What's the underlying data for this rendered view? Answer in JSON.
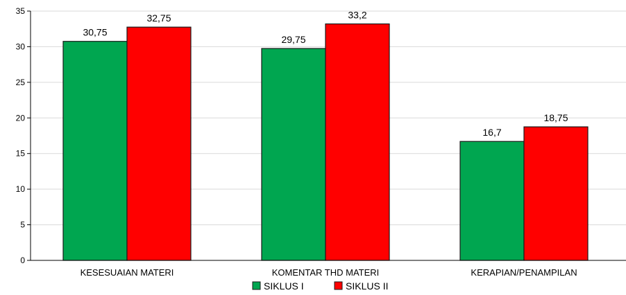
{
  "chart_data": {
    "type": "bar",
    "categories": [
      "KESESUAIAN MATERI",
      "KOMENTAR THD MATERI",
      "KERAPIAN/PENAMPILAN"
    ],
    "series": [
      {
        "name": "SIKLUS I",
        "color": "#00a650",
        "values": [
          30.75,
          29.75,
          16.7
        ],
        "labels": [
          "30,75",
          "29,75",
          "16,7"
        ]
      },
      {
        "name": "SIKLUS II",
        "color": "#ff0000",
        "values": [
          32.75,
          33.2,
          18.75
        ],
        "labels": [
          "32,75",
          "33,2",
          "18,75"
        ]
      }
    ],
    "ylim": [
      0,
      35
    ],
    "yticks": [
      0,
      5,
      10,
      15,
      20,
      25,
      30,
      35
    ],
    "grid": true,
    "legend_position": "bottom",
    "title": "",
    "xlabel": "",
    "ylabel": ""
  }
}
